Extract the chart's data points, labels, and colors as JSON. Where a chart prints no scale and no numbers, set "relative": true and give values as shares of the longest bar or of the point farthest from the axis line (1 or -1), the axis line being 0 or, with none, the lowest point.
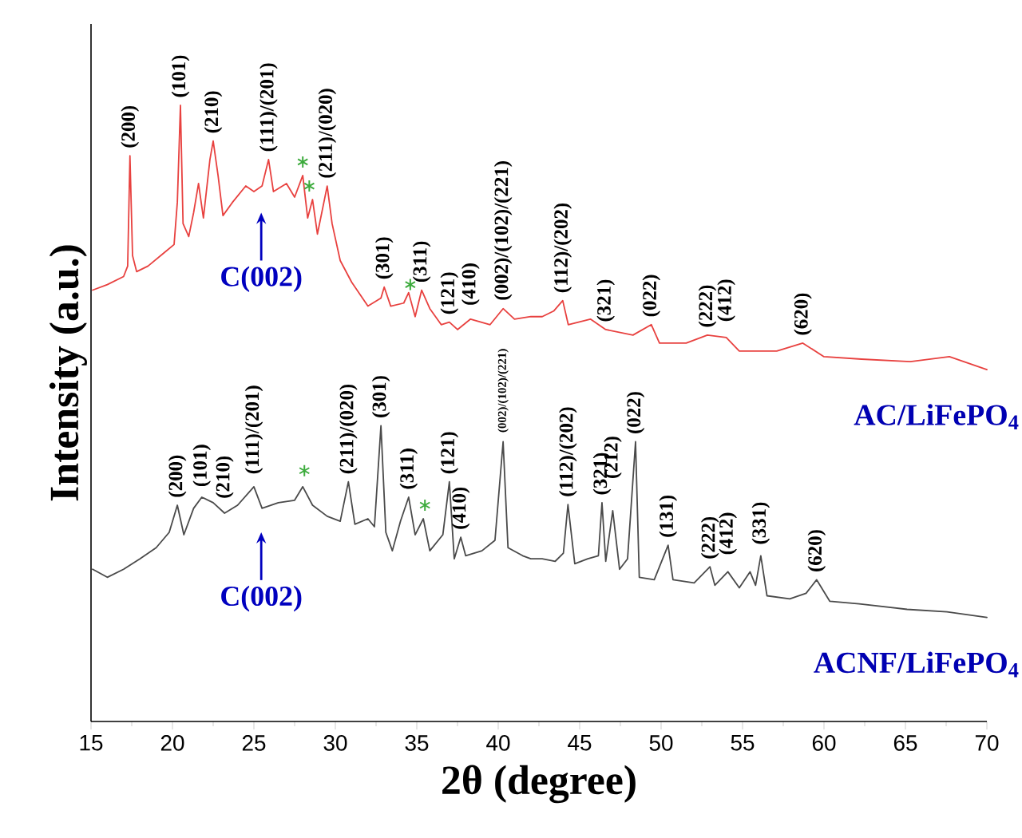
{
  "chart_data": {
    "type": "line",
    "relative": true,
    "xlabel": "2θ (degree)",
    "ylabel": "Intensity (a.u.)",
    "xlim": [
      15,
      70
    ],
    "xticks": [
      15,
      20,
      25,
      30,
      35,
      40,
      45,
      50,
      55,
      60,
      65,
      70
    ],
    "grid": false,
    "marker": "none",
    "line_style": "solid",
    "series": [
      {
        "name": "AC/LiFePO$_{4}$",
        "color": "#e8413f",
        "x": [
          15.1,
          16.0,
          17.0,
          17.25,
          17.39,
          17.55,
          17.8,
          18.5,
          19.5,
          20.1,
          20.3,
          20.49,
          20.65,
          21.0,
          21.3,
          21.6,
          21.9,
          22.3,
          22.5,
          22.8,
          23.1,
          23.7,
          24.5,
          25.0,
          25.5,
          25.9,
          26.2,
          27.0,
          27.5,
          28.0,
          28.3,
          28.6,
          28.9,
          29.3,
          29.5,
          29.8,
          30.3,
          31.0,
          32.0,
          32.8,
          33.0,
          33.4,
          34.2,
          34.5,
          34.9,
          35.3,
          35.8,
          36.5,
          37.0,
          37.5,
          38.3,
          39.5,
          40.3,
          41.0,
          42.0,
          42.7,
          43.4,
          43.96,
          44.3,
          45.66,
          46.6,
          48.27,
          49.4,
          49.9,
          51.54,
          52.84,
          54.0,
          54.8,
          57.1,
          58.7,
          60.0,
          62.3,
          65.3,
          67.7,
          70.0
        ],
        "values": [
          0.7,
          0.709,
          0.722,
          0.739,
          0.918,
          0.756,
          0.73,
          0.739,
          0.761,
          0.774,
          0.843,
          1.0,
          0.808,
          0.787,
          0.826,
          0.873,
          0.817,
          0.912,
          0.942,
          0.886,
          0.821,
          0.843,
          0.869,
          0.86,
          0.869,
          0.912,
          0.86,
          0.873,
          0.851,
          0.886,
          0.817,
          0.847,
          0.791,
          0.843,
          0.869,
          0.808,
          0.748,
          0.713,
          0.674,
          0.687,
          0.705,
          0.674,
          0.679,
          0.696,
          0.657,
          0.7,
          0.67,
          0.644,
          0.648,
          0.636,
          0.653,
          0.644,
          0.67,
          0.653,
          0.657,
          0.657,
          0.666,
          0.683,
          0.644,
          0.653,
          0.636,
          0.627,
          0.644,
          0.614,
          0.614,
          0.627,
          0.623,
          0.601,
          0.601,
          0.614,
          0.592,
          0.588,
          0.584,
          0.592,
          0.571
        ]
      },
      {
        "name": "ACNF/LiFePO$_{4}$",
        "color": "#4a4a4a",
        "x": [
          15.1,
          16.0,
          17.0,
          18.0,
          19.0,
          19.8,
          20.3,
          20.7,
          21.3,
          21.8,
          22.5,
          23.2,
          24.0,
          25.0,
          25.5,
          26.5,
          27.5,
          28.0,
          28.6,
          29.5,
          30.3,
          30.8,
          31.2,
          32.0,
          32.4,
          32.8,
          33.1,
          33.5,
          34.0,
          34.5,
          34.9,
          35.4,
          35.8,
          36.6,
          37.0,
          37.3,
          37.7,
          38.0,
          39.0,
          39.8,
          40.3,
          40.6,
          41.5,
          42.0,
          42.7,
          43.5,
          44.0,
          44.28,
          44.7,
          45.5,
          46.15,
          46.37,
          46.6,
          47.03,
          47.45,
          47.94,
          48.43,
          48.66,
          49.58,
          50.43,
          50.73,
          52.03,
          53.0,
          53.3,
          54.1,
          54.8,
          55.46,
          55.8,
          56.12,
          56.5,
          57.9,
          58.9,
          59.55,
          60.36,
          62.16,
          65.1,
          67.55,
          70.0
        ],
        "values": [
          0.247,
          0.234,
          0.247,
          0.264,
          0.282,
          0.307,
          0.351,
          0.303,
          0.346,
          0.364,
          0.355,
          0.338,
          0.351,
          0.381,
          0.346,
          0.355,
          0.359,
          0.381,
          0.351,
          0.333,
          0.325,
          0.389,
          0.32,
          0.329,
          0.316,
          0.48,
          0.307,
          0.277,
          0.325,
          0.364,
          0.303,
          0.329,
          0.277,
          0.303,
          0.389,
          0.264,
          0.299,
          0.269,
          0.277,
          0.294,
          0.454,
          0.282,
          0.269,
          0.264,
          0.264,
          0.26,
          0.273,
          0.352,
          0.256,
          0.264,
          0.269,
          0.355,
          0.26,
          0.342,
          0.247,
          0.264,
          0.454,
          0.234,
          0.23,
          0.286,
          0.23,
          0.225,
          0.251,
          0.221,
          0.243,
          0.217,
          0.243,
          0.221,
          0.269,
          0.204,
          0.199,
          0.208,
          0.23,
          0.195,
          0.191,
          0.182,
          0.178,
          0.169
        ]
      },
      {
        "type": "scatter",
        "marker": "cross",
        "color": "#3cab3c",
        "x": [
          28.0,
          28.4,
          34.6,
          28.1,
          35.5
        ],
        "values": [
          0.908,
          0.869,
          0.709,
          0.407,
          0.351
        ]
      }
    ],
    "annotations": [
      {
        "text": "(200)",
        "x": 17.39,
        "y": 0.918
      },
      {
        "text": "(101)",
        "x": 20.49,
        "y": 1.0
      },
      {
        "text": "(210)",
        "x": 22.5,
        "y": 0.942
      },
      {
        "text": "(111)/(201)",
        "x": 25.9,
        "y": 0.912
      },
      {
        "text": "(211)/(020)",
        "x": 29.5,
        "y": 0.869
      },
      {
        "text": "(301)",
        "x": 33.0,
        "y": 0.705
      },
      {
        "text": "(311)",
        "x": 35.3,
        "y": 0.7
      },
      {
        "text": "(121)",
        "x": 37.0,
        "y": 0.648
      },
      {
        "text": "(410)",
        "x": 38.3,
        "y": 0.653
      },
      {
        "text": "(002)/(102)/(221)",
        "x": 40.3,
        "y": 0.67
      },
      {
        "text": "(112)/(202)",
        "x": 43.96,
        "y": 0.683
      },
      {
        "text": "(321)",
        "x": 46.6,
        "y": 0.636
      },
      {
        "text": "(022)",
        "x": 49.4,
        "y": 0.644
      },
      {
        "text": "(222)",
        "x": 52.84,
        "y": 0.627
      },
      {
        "text": "(412)",
        "x": 54.0,
        "y": 0.623
      },
      {
        "text": "(620)",
        "x": 58.7,
        "y": 0.614
      },
      "C(002)",
      {
        "text": "(200)",
        "x": 20.3,
        "y": 0.351
      },
      {
        "text": "(101)",
        "x": 21.8,
        "y": 0.364
      },
      {
        "text": "(210)",
        "x": 23.2,
        "y": 0.338
      },
      {
        "text": "(111)/(201)",
        "x": 25.0,
        "y": 0.381
      },
      {
        "text": "(211)/(020)",
        "x": 30.8,
        "y": 0.389
      },
      {
        "text": "(301)",
        "x": 32.8,
        "y": 0.48
      },
      {
        "text": "(311)",
        "x": 34.5,
        "y": 0.364
      },
      {
        "text": "(121)",
        "x": 37.0,
        "y": 0.389
      },
      {
        "text": "(410)",
        "x": 37.7,
        "y": 0.299
      },
      {
        "text": "(002)/(102)/(221)",
        "x": 40.3,
        "y": 0.454
      },
      {
        "text": "(112)/(202)",
        "x": 44.28,
        "y": 0.352
      },
      {
        "text": "(321)",
        "x": 46.37,
        "y": 0.355
      },
      {
        "text": "(212)",
        "x": 47.03,
        "y": 0.342
      },
      {
        "text": "(022)",
        "x": 48.43,
        "y": 0.454
      },
      {
        "text": "(131)",
        "x": 50.43,
        "y": 0.286
      },
      {
        "text": "(222)",
        "x": 53.0,
        "y": 0.251
      },
      {
        "text": "(412)",
        "x": 54.1,
        "y": 0.243
      },
      {
        "text": "(331)",
        "x": 56.12,
        "y": 0.269
      },
      {
        "text": "(620)",
        "x": 59.55,
        "y": 0.23
      },
      "C(002)"
    ]
  }
}
